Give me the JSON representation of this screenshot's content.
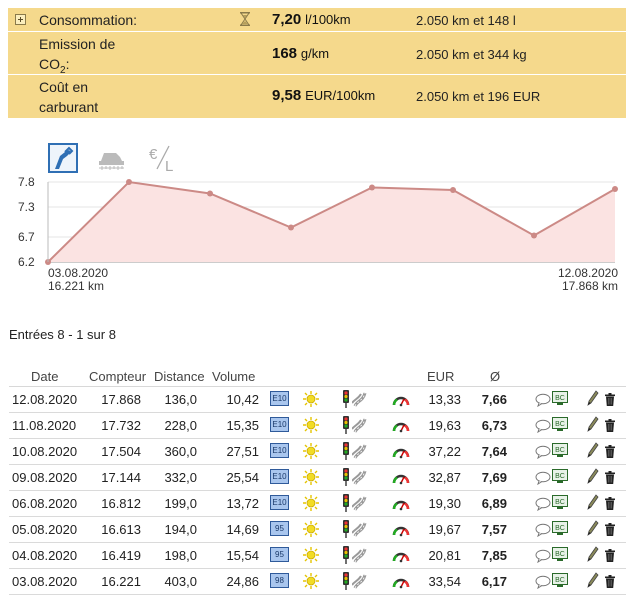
{
  "summary": {
    "consumption": {
      "label": "Consommation:",
      "value": "7,20",
      "unit": "l/100km",
      "extra": "2.050 km et 148 l"
    },
    "co2": {
      "label_line1": "Emission de",
      "label_co": "CO",
      "label_sub": "2",
      "label_colon": ":",
      "value": "168",
      "unit": "g/km",
      "extra": "2.050 km et 344 kg"
    },
    "cost": {
      "label_line1": "Coût en",
      "label_line2": "carburant",
      "value": "9,58",
      "unit": "EUR/100km",
      "extra": "2.050 km et 196 EUR"
    }
  },
  "chart_icons": [
    "fuel-pump-icon",
    "car-speed-icon",
    "euro-per-liter-icon"
  ],
  "chart_data": {
    "type": "area",
    "x": [
      "03.08.2020",
      "04.08.2020",
      "05.08.2020",
      "06.08.2020",
      "09.08.2020",
      "10.08.2020",
      "11.08.2020",
      "12.08.2020"
    ],
    "values": [
      6.17,
      7.85,
      7.57,
      6.89,
      7.69,
      7.64,
      6.73,
      7.66
    ],
    "ylim": [
      6.2,
      7.8
    ],
    "yticks": [
      "7.8",
      "7.3",
      "6.7",
      "6.2"
    ],
    "x_start_label": "03.08.2020",
    "x_start_sub": "16.221 km",
    "x_end_label": "12.08.2020",
    "x_end_sub": "17.868 km",
    "line_color": "#cc8a86",
    "fill_color": "#fbe3e2"
  },
  "entries_title": "Entrées 8 - 1 sur 8",
  "table": {
    "headers": {
      "date": "Date",
      "counter": "Compteur",
      "distance": "Distance",
      "volume": "Volume",
      "eur": "EUR",
      "avg": "Ø"
    },
    "rows": [
      {
        "date": "12.08.2020",
        "counter": "17.868",
        "distance": "136,0",
        "volume": "10,42",
        "fuel": "E10",
        "eur": "13,33",
        "avg": "7,66"
      },
      {
        "date": "11.08.2020",
        "counter": "17.732",
        "distance": "228,0",
        "volume": "15,35",
        "fuel": "E10",
        "eur": "19,63",
        "avg": "6,73"
      },
      {
        "date": "10.08.2020",
        "counter": "17.504",
        "distance": "360,0",
        "volume": "27,51",
        "fuel": "E10",
        "eur": "37,22",
        "avg": "7,64"
      },
      {
        "date": "09.08.2020",
        "counter": "17.144",
        "distance": "332,0",
        "volume": "25,54",
        "fuel": "E10",
        "eur": "32,87",
        "avg": "7,69"
      },
      {
        "date": "06.08.2020",
        "counter": "16.812",
        "distance": "199,0",
        "volume": "13,72",
        "fuel": "E10",
        "eur": "19,30",
        "avg": "6,89"
      },
      {
        "date": "05.08.2020",
        "counter": "16.613",
        "distance": "194,0",
        "volume": "14,69",
        "fuel": "95",
        "eur": "19,67",
        "avg": "7,57"
      },
      {
        "date": "04.08.2020",
        "counter": "16.419",
        "distance": "198,0",
        "volume": "15,54",
        "fuel": "95",
        "eur": "20,81",
        "avg": "7,85"
      },
      {
        "date": "03.08.2020",
        "counter": "16.221",
        "distance": "403,0",
        "volume": "24,86",
        "fuel": "98",
        "eur": "33,54",
        "avg": "6,17"
      }
    ],
    "row_icons": [
      "sun-icon",
      "traffic-light-icon",
      "road-icon",
      "gauge-icon",
      "comment-icon",
      "bc-icon",
      "edit-pencil-icon",
      "trash-icon"
    ],
    "bc_label": "BC"
  }
}
